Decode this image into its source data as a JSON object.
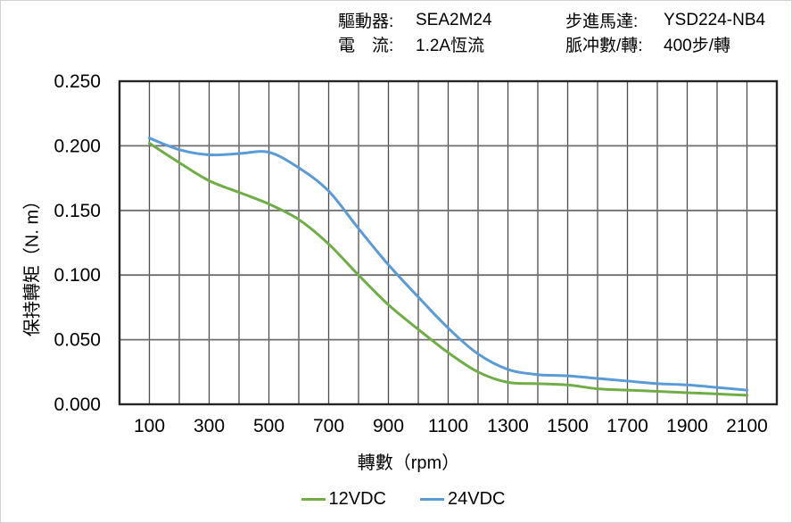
{
  "header": {
    "items": [
      {
        "label": "驅動器:",
        "value": "SEA2M24"
      },
      {
        "label": "電　流:",
        "value": "1.2A恆流"
      },
      {
        "label": "步進馬達:",
        "value": "YSD224-NB4"
      },
      {
        "label": "脈冲數/轉:",
        "value": "400步/轉"
      }
    ]
  },
  "chart_data": {
    "type": "line",
    "title": "",
    "x": [
      100,
      200,
      300,
      400,
      500,
      600,
      700,
      800,
      900,
      1000,
      1100,
      1200,
      1300,
      1400,
      1500,
      1600,
      1700,
      1800,
      1900,
      2000,
      2100
    ],
    "series": [
      {
        "name": "12VDC",
        "color": "#70AD47",
        "values": [
          0.202,
          0.187,
          0.173,
          0.164,
          0.155,
          0.143,
          0.124,
          0.1,
          0.077,
          0.058,
          0.04,
          0.025,
          0.017,
          0.016,
          0.015,
          0.012,
          0.011,
          0.01,
          0.009,
          0.008,
          0.007
        ]
      },
      {
        "name": "24VDC",
        "color": "#5B9BD5",
        "values": [
          0.206,
          0.197,
          0.193,
          0.194,
          0.195,
          0.183,
          0.165,
          0.136,
          0.108,
          0.083,
          0.059,
          0.039,
          0.027,
          0.023,
          0.022,
          0.02,
          0.018,
          0.016,
          0.015,
          0.013,
          0.011
        ]
      }
    ],
    "xlabel": "轉數（rpm）",
    "ylabel": "保持轉矩（N. m）",
    "xlim": [
      0,
      2200
    ],
    "ylim": [
      0,
      0.25
    ],
    "x_grid_step": 100,
    "x_tick_labels": [
      100,
      300,
      500,
      700,
      900,
      1100,
      1300,
      1500,
      1700,
      1900,
      2100
    ],
    "y_ticks": [
      0.0,
      0.05,
      0.1,
      0.15,
      0.2,
      0.25
    ],
    "grid": "on",
    "legend_position": "bottom"
  }
}
